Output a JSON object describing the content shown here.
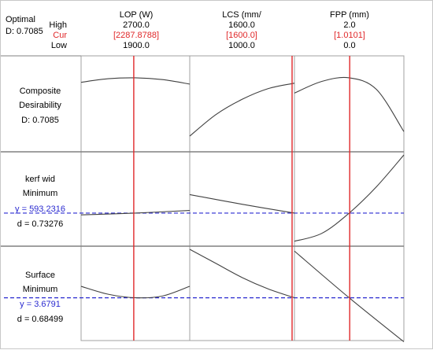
{
  "header": {
    "optimal_label": "Optimal",
    "optimal_d": "D: 0.7085",
    "row_high": "High",
    "row_cur": "Cur",
    "row_low": "Low"
  },
  "factors": [
    {
      "name": "LOP (W)",
      "high": "2700.0",
      "cur": "[2287.8788]",
      "low": "1900.0",
      "high_value": 2700.0,
      "cur_value": 2287.8788,
      "low_value": 1900.0
    },
    {
      "name": "LCS (mm/",
      "high": "1600.0",
      "cur": "[1600.0]",
      "low": "1000.0",
      "high_value": 1600.0,
      "cur_value": 1600.0,
      "low_value": 1000.0
    },
    {
      "name": "FPP (mm)",
      "high": "2.0",
      "cur": "[1.0101]",
      "low": "0.0",
      "high_value": 2.0,
      "cur_value": 1.0101,
      "low_value": 0.0
    }
  ],
  "responses": [
    {
      "line1": "Composite",
      "line2": "Desirability",
      "line3": "D: 0.7085",
      "line4": ""
    },
    {
      "line1": "kerf wid",
      "line2": "Minimum",
      "line3": "y = 593.2316",
      "line4": "d = 0.73276"
    },
    {
      "line1": "Surface",
      "line2": "Minimum",
      "line3": "y = 3.6791",
      "line4": "d = 0.68499"
    }
  ],
  "colors": {
    "current": "#e0282a",
    "target": "#2a2ad0",
    "curve": "#404040",
    "grid": "#a0a0a0"
  },
  "chart_data": {
    "type": "line",
    "title": "",
    "note": "optimization plot: each response profile vs each factor, values relative to row scale (0 = bottom, 1 = top)",
    "rows": [
      {
        "response": "Composite Desirability",
        "reference": null,
        "curves": [
          {
            "factor": "LOP (W)",
            "x": [
              1900,
              2100,
              2300,
              2500,
              2700
            ],
            "y": [
              0.74,
              0.78,
              0.79,
              0.77,
              0.72
            ]
          },
          {
            "factor": "LCS (mm/",
            "x": [
              1000,
              1150,
              1300,
              1450,
              1600
            ],
            "y": [
              0.14,
              0.38,
              0.55,
              0.67,
              0.73
            ]
          },
          {
            "factor": "FPP (mm)",
            "x": [
              0.0,
              0.5,
              1.0,
              1.5,
              2.0
            ],
            "y": [
              0.62,
              0.75,
              0.79,
              0.66,
              0.19
            ]
          }
        ]
      },
      {
        "response": "kerf wid Minimum",
        "reference": 0.34,
        "curves": [
          {
            "factor": "LOP (W)",
            "x": [
              1900,
              2300,
              2700
            ],
            "y": [
              0.32,
              0.34,
              0.37
            ]
          },
          {
            "factor": "LCS (mm/",
            "x": [
              1000,
              1300,
              1600
            ],
            "y": [
              0.55,
              0.44,
              0.34
            ]
          },
          {
            "factor": "FPP (mm)",
            "x": [
              0.0,
              0.5,
              1.0,
              1.5,
              2.0
            ],
            "y": [
              0.02,
              0.11,
              0.34,
              0.64,
              1.0
            ]
          }
        ]
      },
      {
        "response": "Surface Minimum",
        "reference": 0.45,
        "curves": [
          {
            "factor": "LOP (W)",
            "x": [
              1900,
              2100,
              2300,
              2500,
              2700
            ],
            "y": [
              0.58,
              0.49,
              0.45,
              0.47,
              0.58
            ]
          },
          {
            "factor": "LCS (mm/",
            "x": [
              1000,
              1150,
              1300,
              1450,
              1600
            ],
            "y": [
              1.0,
              0.84,
              0.68,
              0.55,
              0.45
            ]
          },
          {
            "factor": "FPP (mm)",
            "x": [
              0.0,
              1.0,
              2.0
            ],
            "y": [
              0.98,
              0.45,
              -0.05
            ]
          }
        ]
      }
    ]
  }
}
